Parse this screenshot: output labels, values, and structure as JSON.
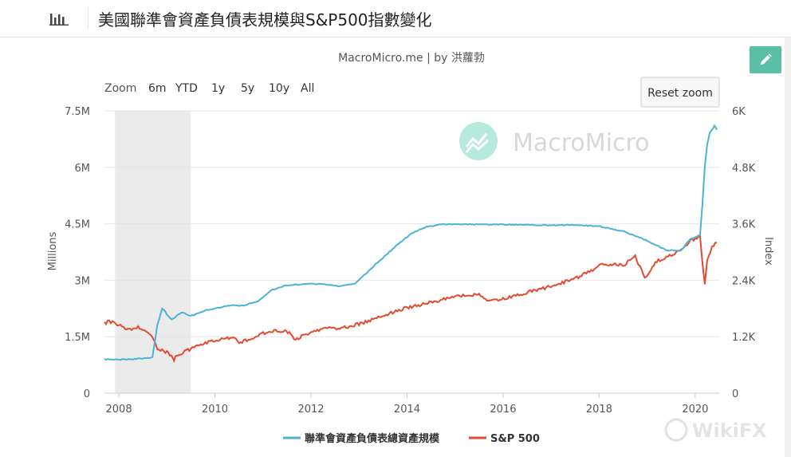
{
  "header": {
    "title": "美國聯準會資產負債表規模與S&P500指數變化",
    "icon": "bar-chart-icon"
  },
  "subtitle": "MacroMicro.me | by 洪蘿勃",
  "watermark": "MacroMicro",
  "corner_watermark": "WikiFX",
  "range_selector": {
    "zoom_label": "Zoom",
    "buttons": [
      "6m",
      "YTD",
      "1y",
      "5y",
      "10y",
      "All"
    ]
  },
  "reset_zoom_label": "Reset zoom",
  "colors": {
    "balance_sheet": "#4ab3d6",
    "sp500": "#e24b31",
    "recession_band": "#ebebeb",
    "edit_button": "#5bbfa5"
  },
  "chart_data": {
    "type": "line",
    "x_ticks": [
      "2008",
      "2010",
      "2012",
      "2014",
      "2016",
      "2018",
      "2020"
    ],
    "xlim": [
      2007.7,
      2020.5
    ],
    "y_left": {
      "label": "Millions",
      "ticks": [
        "0",
        "1.5M",
        "3M",
        "4.5M",
        "6M",
        "7.5M"
      ],
      "range": [
        0,
        7500000
      ]
    },
    "y_right": {
      "label": "Index",
      "ticks": [
        "0",
        "1.2K",
        "2.4K",
        "3.6K",
        "4.8K",
        "6K"
      ],
      "range": [
        0,
        6000
      ]
    },
    "recession_band": [
      2007.92,
      2009.5
    ],
    "grid": true,
    "legend_position": "bottom-center",
    "series": [
      {
        "name": "聯準會資產負債表總資產規模",
        "axis": "left",
        "x": [
          2007.7,
          2008.0,
          2008.5,
          2008.7,
          2008.8,
          2008.9,
          2008.95,
          2009.0,
          2009.1,
          2009.2,
          2009.3,
          2009.4,
          2009.5,
          2009.6,
          2009.8,
          2010.0,
          2010.3,
          2010.6,
          2010.9,
          2011.2,
          2011.5,
          2011.8,
          2012.0,
          2012.3,
          2012.6,
          2012.9,
          2013.2,
          2013.5,
          2013.8,
          2014.1,
          2014.4,
          2014.7,
          2015.0,
          2015.5,
          2016.0,
          2016.5,
          2017.0,
          2017.5,
          2018.0,
          2018.5,
          2019.0,
          2019.4,
          2019.7,
          2019.9,
          2020.1,
          2020.15,
          2020.2,
          2020.25,
          2020.3,
          2020.4,
          2020.45
        ],
        "values": [
          900000,
          890000,
          920000,
          950000,
          1800000,
          2250000,
          2200000,
          2100000,
          1950000,
          2050000,
          2150000,
          2100000,
          2050000,
          2100000,
          2200000,
          2250000,
          2330000,
          2330000,
          2450000,
          2750000,
          2870000,
          2890000,
          2910000,
          2890000,
          2840000,
          2900000,
          3250000,
          3600000,
          3950000,
          4250000,
          4420000,
          4480000,
          4490000,
          4480000,
          4480000,
          4470000,
          4460000,
          4470000,
          4430000,
          4300000,
          4050000,
          3800000,
          3780000,
          4100000,
          4200000,
          5000000,
          6000000,
          6600000,
          6900000,
          7100000,
          7000000
        ]
      },
      {
        "name": "S&P 500",
        "axis": "right",
        "x": [
          2007.7,
          2007.8,
          2008.0,
          2008.2,
          2008.4,
          2008.6,
          2008.7,
          2008.8,
          2008.9,
          2009.0,
          2009.15,
          2009.2,
          2009.4,
          2009.6,
          2009.9,
          2010.2,
          2010.35,
          2010.5,
          2010.8,
          2011.0,
          2011.3,
          2011.55,
          2011.65,
          2011.9,
          2012.2,
          2012.5,
          2012.8,
          2013.0,
          2013.5,
          2014.0,
          2014.5,
          2015.0,
          2015.5,
          2015.7,
          2016.0,
          2016.2,
          2016.6,
          2017.0,
          2017.5,
          2018.0,
          2018.1,
          2018.5,
          2018.75,
          2018.95,
          2019.2,
          2019.6,
          2019.9,
          2020.1,
          2020.15,
          2020.2,
          2020.25,
          2020.35,
          2020.45
        ],
        "values": [
          1480,
          1530,
          1450,
          1350,
          1400,
          1300,
          1200,
          960,
          900,
          880,
          720,
          800,
          900,
          1000,
          1100,
          1150,
          1200,
          1080,
          1180,
          1280,
          1330,
          1300,
          1130,
          1250,
          1360,
          1380,
          1420,
          1470,
          1650,
          1820,
          1930,
          2050,
          2100,
          1950,
          2000,
          2050,
          2170,
          2270,
          2430,
          2700,
          2750,
          2720,
          2900,
          2450,
          2800,
          2980,
          3230,
          3350,
          2750,
          2300,
          2800,
          3100,
          3200
        ]
      }
    ]
  }
}
